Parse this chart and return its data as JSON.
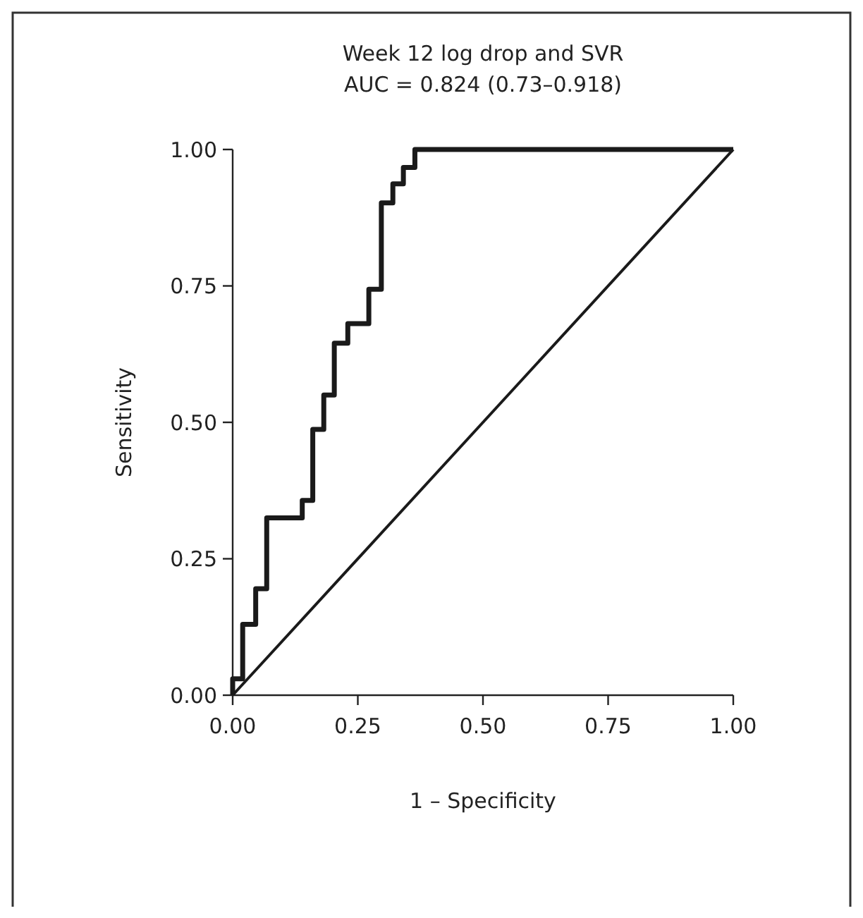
{
  "chart_data": {
    "type": "line",
    "title": "Week 12 log drop and SVR",
    "subtitle": "AUC = 0.824 (0.73–0.918)",
    "xlabel": "1 – Specificity",
    "ylabel": "Sensitivity",
    "xlim": [
      0,
      1
    ],
    "ylim": [
      0,
      1
    ],
    "xticks": [
      {
        "value": 0,
        "label": "0.00"
      },
      {
        "value": 0.25,
        "label": "0.25"
      },
      {
        "value": 0.5,
        "label": "0.50"
      },
      {
        "value": 0.75,
        "label": "0.75"
      },
      {
        "value": 1,
        "label": "1.00"
      }
    ],
    "yticks": [
      {
        "value": 0,
        "label": "0.00"
      },
      {
        "value": 0.25,
        "label": "0.25"
      },
      {
        "value": 0.5,
        "label": "0.50"
      },
      {
        "value": 0.75,
        "label": "0.75"
      },
      {
        "value": 1,
        "label": "1.00"
      }
    ],
    "grid": false,
    "marker": "none",
    "line_style": "solid",
    "series": [
      {
        "color": "#1a1a1a",
        "x": [
          0,
          0,
          0.02,
          0.02,
          0.046,
          0.046,
          0.068,
          0.068,
          0.139,
          0.139,
          0.16,
          0.16,
          0.182,
          0.182,
          0.203,
          0.203,
          0.23,
          0.23,
          0.272,
          0.272,
          0.297,
          0.297,
          0.32,
          0.32,
          0.341,
          0.341,
          0.364,
          0.364,
          1
        ],
        "values": [
          0,
          0.03,
          0.03,
          0.13,
          0.13,
          0.195,
          0.195,
          0.325,
          0.325,
          0.357,
          0.357,
          0.487,
          0.487,
          0.55,
          0.55,
          0.645,
          0.645,
          0.681,
          0.681,
          0.744,
          0.744,
          0.902,
          0.902,
          0.937,
          0.937,
          0.967,
          0.967,
          1,
          1
        ]
      },
      {
        "color": "#1a1a1a",
        "x": [
          0,
          1
        ],
        "values": [
          0,
          1
        ]
      }
    ]
  }
}
